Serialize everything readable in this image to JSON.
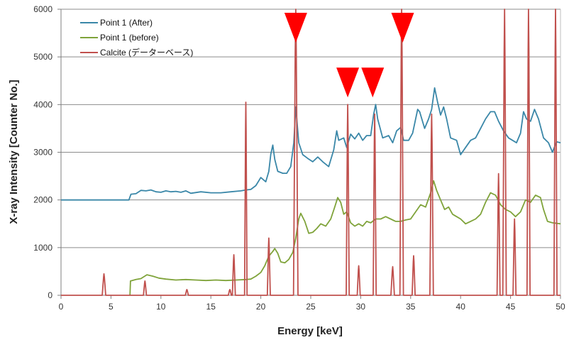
{
  "chart_data": {
    "type": "line",
    "xlabel": "Energy [keV]",
    "ylabel": "X-ray Intensity [Counter No.]",
    "xlim": [
      0,
      50
    ],
    "ylim": [
      0,
      6000
    ],
    "x_ticks": [
      0,
      5,
      10,
      15,
      20,
      25,
      30,
      35,
      40,
      45,
      50
    ],
    "y_ticks": [
      0,
      1000,
      2000,
      3000,
      4000,
      5000,
      6000
    ],
    "grid": "horizontal",
    "legend_position": "top-left",
    "series": [
      {
        "name": "Point 1 (After)",
        "color": "#3a87a8",
        "points": [
          [
            0,
            2000
          ],
          [
            6.8,
            2000
          ],
          [
            7,
            2120
          ],
          [
            7.5,
            2130
          ],
          [
            8,
            2200
          ],
          [
            8.5,
            2190
          ],
          [
            9,
            2210
          ],
          [
            9.5,
            2170
          ],
          [
            10,
            2160
          ],
          [
            10.5,
            2190
          ],
          [
            11,
            2170
          ],
          [
            11.5,
            2180
          ],
          [
            12,
            2160
          ],
          [
            12.5,
            2190
          ],
          [
            13,
            2140
          ],
          [
            14,
            2170
          ],
          [
            15,
            2150
          ],
          [
            16,
            2150
          ],
          [
            17,
            2170
          ],
          [
            18,
            2190
          ],
          [
            18.5,
            2210
          ],
          [
            19,
            2220
          ],
          [
            19.5,
            2300
          ],
          [
            20,
            2470
          ],
          [
            20.5,
            2380
          ],
          [
            20.8,
            2600
          ],
          [
            21,
            2960
          ],
          [
            21.2,
            3150
          ],
          [
            21.4,
            2850
          ],
          [
            21.7,
            2600
          ],
          [
            22.2,
            2560
          ],
          [
            22.6,
            2560
          ],
          [
            23,
            2700
          ],
          [
            23.3,
            3200
          ],
          [
            23.5,
            3950
          ],
          [
            23.8,
            3200
          ],
          [
            24.2,
            2950
          ],
          [
            24.7,
            2870
          ],
          [
            25.2,
            2800
          ],
          [
            25.7,
            2900
          ],
          [
            26.2,
            2800
          ],
          [
            26.8,
            2700
          ],
          [
            27.3,
            3050
          ],
          [
            27.6,
            3450
          ],
          [
            27.8,
            3250
          ],
          [
            28.3,
            3300
          ],
          [
            28.6,
            3100
          ],
          [
            29,
            3380
          ],
          [
            29.4,
            3280
          ],
          [
            29.8,
            3400
          ],
          [
            30.2,
            3250
          ],
          [
            30.6,
            3350
          ],
          [
            31,
            3350
          ],
          [
            31.3,
            3800
          ],
          [
            31.5,
            4000
          ],
          [
            31.7,
            3700
          ],
          [
            32.2,
            3300
          ],
          [
            32.8,
            3350
          ],
          [
            33.2,
            3200
          ],
          [
            33.6,
            3450
          ],
          [
            34,
            3520
          ],
          [
            34.3,
            3250
          ],
          [
            34.8,
            3250
          ],
          [
            35.2,
            3400
          ],
          [
            35.7,
            3900
          ],
          [
            35.9,
            3850
          ],
          [
            36.4,
            3500
          ],
          [
            36.8,
            3700
          ],
          [
            37.1,
            3900
          ],
          [
            37.4,
            4350
          ],
          [
            37.7,
            4050
          ],
          [
            38,
            3780
          ],
          [
            38.3,
            3950
          ],
          [
            38.6,
            3700
          ],
          [
            39,
            3300
          ],
          [
            39.6,
            3250
          ],
          [
            40,
            2950
          ],
          [
            40.5,
            3100
          ],
          [
            41,
            3250
          ],
          [
            41.5,
            3300
          ],
          [
            42,
            3500
          ],
          [
            42.5,
            3700
          ],
          [
            43,
            3850
          ],
          [
            43.4,
            3850
          ],
          [
            43.8,
            3650
          ],
          [
            44.3,
            3450
          ],
          [
            44.8,
            3300
          ],
          [
            45.2,
            3250
          ],
          [
            45.6,
            3200
          ],
          [
            46,
            3400
          ],
          [
            46.3,
            3850
          ],
          [
            46.6,
            3700
          ],
          [
            47,
            3650
          ],
          [
            47.4,
            3900
          ],
          [
            47.8,
            3700
          ],
          [
            48.3,
            3300
          ],
          [
            48.8,
            3200
          ],
          [
            49.2,
            3000
          ],
          [
            49.6,
            3220
          ],
          [
            50,
            3200
          ]
        ]
      },
      {
        "name": "Point 1 (before)",
        "color": "#7fa33a",
        "points": [
          [
            6.9,
            0
          ],
          [
            6.95,
            300
          ],
          [
            7.5,
            330
          ],
          [
            8,
            350
          ],
          [
            8.6,
            430
          ],
          [
            9.2,
            400
          ],
          [
            9.8,
            360
          ],
          [
            10.5,
            340
          ],
          [
            11.5,
            320
          ],
          [
            12.5,
            330
          ],
          [
            13.5,
            320
          ],
          [
            14.5,
            310
          ],
          [
            15.5,
            320
          ],
          [
            16.5,
            310
          ],
          [
            17.5,
            320
          ],
          [
            18.5,
            330
          ],
          [
            19,
            340
          ],
          [
            19.5,
            400
          ],
          [
            20,
            480
          ],
          [
            20.4,
            620
          ],
          [
            20.8,
            820
          ],
          [
            21.2,
            920
          ],
          [
            21.4,
            980
          ],
          [
            21.7,
            880
          ],
          [
            22,
            700
          ],
          [
            22.4,
            680
          ],
          [
            22.8,
            750
          ],
          [
            23.2,
            900
          ],
          [
            23.5,
            1200
          ],
          [
            23.8,
            1600
          ],
          [
            24,
            1720
          ],
          [
            24.4,
            1550
          ],
          [
            24.8,
            1300
          ],
          [
            25.2,
            1320
          ],
          [
            25.6,
            1400
          ],
          [
            26,
            1500
          ],
          [
            26.5,
            1450
          ],
          [
            27,
            1600
          ],
          [
            27.4,
            1850
          ],
          [
            27.7,
            2050
          ],
          [
            28,
            1950
          ],
          [
            28.3,
            1700
          ],
          [
            28.6,
            1750
          ],
          [
            29,
            1520
          ],
          [
            29.4,
            1450
          ],
          [
            29.8,
            1500
          ],
          [
            30.2,
            1450
          ],
          [
            30.6,
            1550
          ],
          [
            31,
            1520
          ],
          [
            31.5,
            1600
          ],
          [
            32,
            1600
          ],
          [
            32.5,
            1650
          ],
          [
            33,
            1600
          ],
          [
            33.5,
            1550
          ],
          [
            34,
            1550
          ],
          [
            34.5,
            1580
          ],
          [
            35,
            1600
          ],
          [
            35.5,
            1750
          ],
          [
            36,
            1900
          ],
          [
            36.5,
            1850
          ],
          [
            37,
            2150
          ],
          [
            37.3,
            2400
          ],
          [
            37.6,
            2200
          ],
          [
            38,
            2000
          ],
          [
            38.4,
            1800
          ],
          [
            38.8,
            1850
          ],
          [
            39.2,
            1700
          ],
          [
            39.6,
            1650
          ],
          [
            40,
            1600
          ],
          [
            40.5,
            1500
          ],
          [
            41,
            1550
          ],
          [
            41.5,
            1600
          ],
          [
            42,
            1700
          ],
          [
            42.5,
            1950
          ],
          [
            43,
            2150
          ],
          [
            43.5,
            2100
          ],
          [
            44,
            1900
          ],
          [
            44.5,
            1800
          ],
          [
            45,
            1750
          ],
          [
            45.5,
            1650
          ],
          [
            46,
            1750
          ],
          [
            46.5,
            2000
          ],
          [
            47,
            1950
          ],
          [
            47.5,
            2100
          ],
          [
            48,
            2050
          ],
          [
            48.3,
            1800
          ],
          [
            48.7,
            1550
          ],
          [
            49.2,
            1520
          ],
          [
            50,
            1500
          ]
        ]
      },
      {
        "name": "Calcite (データーベース)",
        "color": "#c0504d",
        "peaks": [
          {
            "center": 4.3,
            "height": 450,
            "width": 0.35
          },
          {
            "center": 8.4,
            "height": 300,
            "width": 0.3
          },
          {
            "center": 12.6,
            "height": 120,
            "width": 0.3
          },
          {
            "center": 16.9,
            "height": 120,
            "width": 0.3
          },
          {
            "center": 17.3,
            "height": 850,
            "width": 0.3
          },
          {
            "center": 18.5,
            "height": 4050,
            "width": 0.25
          },
          {
            "center": 20.8,
            "height": 1200,
            "width": 0.3
          },
          {
            "center": 23.5,
            "height": 6000,
            "width": 0.45
          },
          {
            "center": 28.7,
            "height": 4000,
            "width": 0.3
          },
          {
            "center": 29.8,
            "height": 620,
            "width": 0.3
          },
          {
            "center": 31.4,
            "height": 3800,
            "width": 0.3
          },
          {
            "center": 33.2,
            "height": 600,
            "width": 0.35
          },
          {
            "center": 34.1,
            "height": 6000,
            "width": 0.35
          },
          {
            "center": 35.3,
            "height": 830,
            "width": 0.3
          },
          {
            "center": 37.1,
            "height": 3800,
            "width": 0.35
          },
          {
            "center": 43.8,
            "height": 2550,
            "width": 0.3
          },
          {
            "center": 44.4,
            "height": 6000,
            "width": 0.35
          },
          {
            "center": 45.4,
            "height": 1600,
            "width": 0.3
          },
          {
            "center": 46.8,
            "height": 6000,
            "width": 0.3
          },
          {
            "center": 49.5,
            "height": 6000,
            "width": 0.3
          }
        ]
      }
    ],
    "annotations": [
      {
        "type": "down-triangle-marker",
        "color": "#ff0000",
        "x": 23.5,
        "y": 5300
      },
      {
        "type": "down-triangle-marker",
        "color": "#ff0000",
        "x": 28.7,
        "y": 4150
      },
      {
        "type": "down-triangle-marker",
        "color": "#ff0000",
        "x": 31.2,
        "y": 4150
      },
      {
        "type": "down-triangle-marker",
        "color": "#ff0000",
        "x": 34.2,
        "y": 5300
      }
    ]
  }
}
